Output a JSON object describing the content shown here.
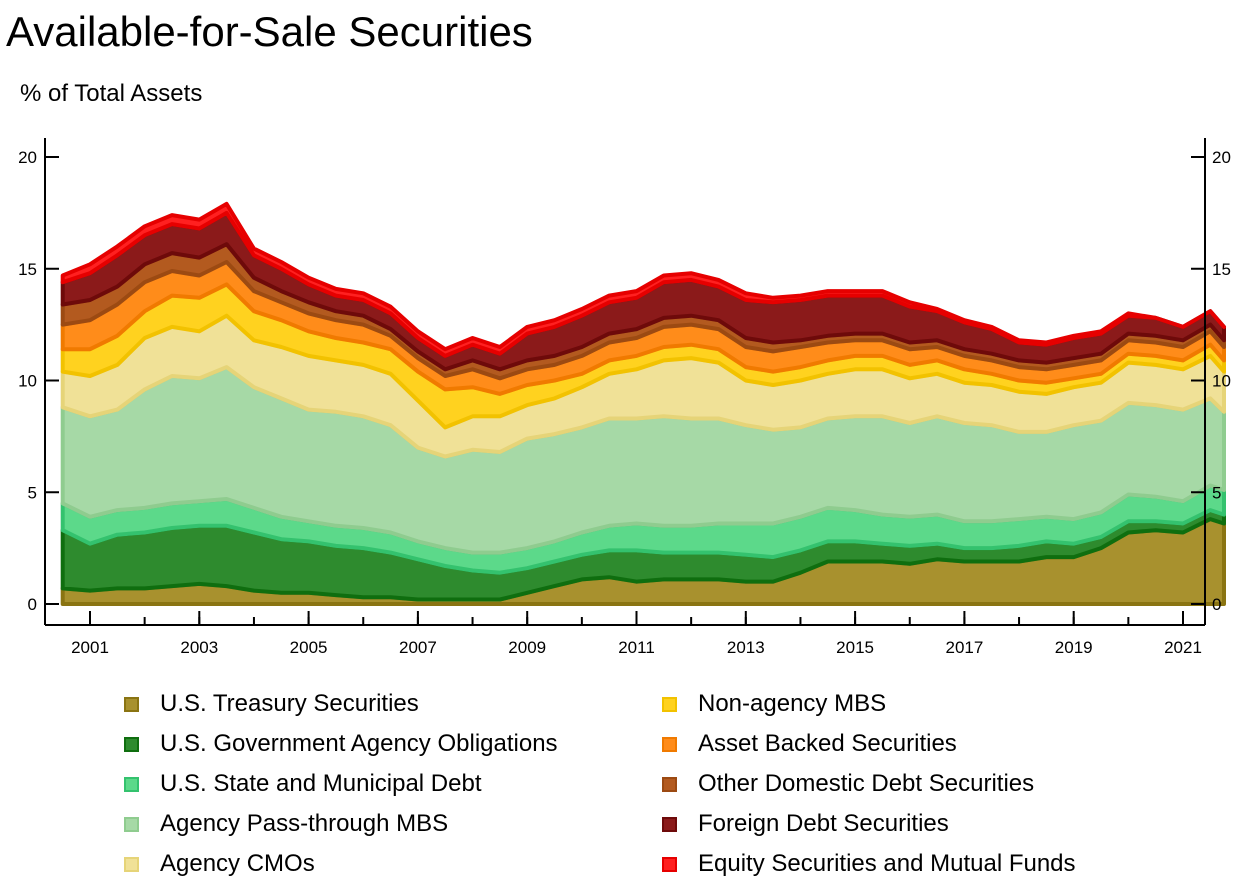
{
  "title": "Available-for-Sale Securities",
  "subtitle": "% of Total Assets",
  "chart_data": {
    "type": "area",
    "stacked": true,
    "title": "Available-for-Sale Securities",
    "ylabel": "% of Total Assets",
    "ylim": [
      0,
      20
    ],
    "yticks": [
      0,
      5,
      10,
      15,
      20
    ],
    "xlim": [
      2000.5,
      2021.75
    ],
    "xticks": [
      "2001",
      "2003",
      "2005",
      "2007",
      "2009",
      "2011",
      "2013",
      "2015",
      "2017",
      "2019",
      "2021"
    ],
    "right_axis": true,
    "grid": false,
    "legend_position": "bottom",
    "x": [
      2000.5,
      2001.0,
      2001.5,
      2002.0,
      2002.5,
      2003.0,
      2003.5,
      2004.0,
      2004.5,
      2005.0,
      2005.5,
      2006.0,
      2006.5,
      2007.0,
      2007.5,
      2008.0,
      2008.5,
      2009.0,
      2009.5,
      2010.0,
      2010.5,
      2011.0,
      2011.5,
      2012.0,
      2012.5,
      2013.0,
      2013.5,
      2014.0,
      2014.5,
      2015.0,
      2015.5,
      2016.0,
      2016.5,
      2017.0,
      2017.5,
      2018.0,
      2018.5,
      2019.0,
      2019.5,
      2020.0,
      2020.5,
      2021.0,
      2021.5,
      2021.75
    ],
    "series": [
      {
        "name": "U.S. Treasury Securities",
        "color": "#a8912e",
        "edge": "#8a7412",
        "values": [
          0.7,
          0.6,
          0.7,
          0.7,
          0.8,
          0.9,
          0.8,
          0.6,
          0.5,
          0.5,
          0.4,
          0.3,
          0.3,
          0.2,
          0.2,
          0.2,
          0.2,
          0.5,
          0.8,
          1.1,
          1.2,
          1.0,
          1.1,
          1.1,
          1.1,
          1.0,
          1.0,
          1.4,
          1.9,
          1.9,
          1.9,
          1.8,
          2.0,
          1.9,
          1.9,
          1.9,
          2.1,
          2.1,
          2.5,
          3.2,
          3.3,
          3.2,
          3.8,
          3.6
        ]
      },
      {
        "name": "U.S. Government Agency Obligations",
        "color": "#2e8b2e",
        "edge": "#0f6e0f",
        "values": [
          2.6,
          2.1,
          2.4,
          2.5,
          2.6,
          2.6,
          2.7,
          2.6,
          2.4,
          2.3,
          2.2,
          2.2,
          2.0,
          1.8,
          1.5,
          1.3,
          1.2,
          1.1,
          1.1,
          1.1,
          1.2,
          1.4,
          1.2,
          1.2,
          1.2,
          1.2,
          1.1,
          1.0,
          0.9,
          0.9,
          0.8,
          0.8,
          0.7,
          0.6,
          0.6,
          0.7,
          0.7,
          0.6,
          0.5,
          0.5,
          0.4,
          0.4,
          0.4,
          0.4
        ]
      },
      {
        "name": "U.S. State and Municipal Debt",
        "color": "#5cd98a",
        "edge": "#34c26e",
        "values": [
          1.2,
          1.2,
          1.1,
          1.1,
          1.1,
          1.1,
          1.2,
          1.1,
          1.0,
          0.9,
          0.9,
          0.9,
          0.9,
          0.8,
          0.8,
          0.8,
          0.9,
          0.9,
          0.9,
          1.0,
          1.1,
          1.2,
          1.2,
          1.2,
          1.3,
          1.4,
          1.5,
          1.5,
          1.5,
          1.4,
          1.3,
          1.3,
          1.3,
          1.2,
          1.2,
          1.2,
          1.1,
          1.1,
          1.1,
          1.2,
          1.1,
          1.0,
          1.1,
          1.1
        ]
      },
      {
        "name": "Agency Pass-through MBS",
        "color": "#a6d9a6",
        "edge": "#8fcc8f",
        "values": [
          4.3,
          4.5,
          4.5,
          5.3,
          5.7,
          5.5,
          5.9,
          5.4,
          5.3,
          5.0,
          5.1,
          5.0,
          4.8,
          4.2,
          4.1,
          4.6,
          4.5,
          4.9,
          4.8,
          4.7,
          4.8,
          4.7,
          4.9,
          4.8,
          4.7,
          4.4,
          4.2,
          4.0,
          4.0,
          4.2,
          4.4,
          4.2,
          4.4,
          4.4,
          4.3,
          3.9,
          3.8,
          4.2,
          4.1,
          4.1,
          4.1,
          4.1,
          3.9,
          3.5
        ]
      },
      {
        "name": "Agency CMOs",
        "color": "#f0e197",
        "edge": "#e6d478",
        "values": [
          1.6,
          1.8,
          2.0,
          2.3,
          2.2,
          2.1,
          2.3,
          2.1,
          2.3,
          2.4,
          2.3,
          2.3,
          2.3,
          2.1,
          1.3,
          1.5,
          1.6,
          1.5,
          1.6,
          1.8,
          2.0,
          2.2,
          2.5,
          2.7,
          2.5,
          2.0,
          2.0,
          2.1,
          2.0,
          2.1,
          2.1,
          2.0,
          1.9,
          1.8,
          1.8,
          1.8,
          1.7,
          1.7,
          1.7,
          1.8,
          1.8,
          1.8,
          1.9,
          1.8
        ]
      },
      {
        "name": "Non-agency MBS",
        "color": "#ffd21f",
        "edge": "#f2c200",
        "values": [
          1.0,
          1.2,
          1.3,
          1.2,
          1.4,
          1.5,
          1.4,
          1.3,
          1.2,
          1.1,
          1.0,
          1.0,
          1.1,
          1.3,
          1.7,
          1.3,
          1.0,
          0.9,
          0.8,
          0.6,
          0.6,
          0.6,
          0.6,
          0.6,
          0.6,
          0.6,
          0.6,
          0.6,
          0.6,
          0.6,
          0.6,
          0.6,
          0.6,
          0.6,
          0.5,
          0.5,
          0.5,
          0.4,
          0.4,
          0.4,
          0.4,
          0.4,
          0.5,
          0.5
        ]
      },
      {
        "name": "Asset Backed Securities",
        "color": "#ff8c1a",
        "edge": "#f07a00",
        "values": [
          1.1,
          1.3,
          1.4,
          1.3,
          1.1,
          1.0,
          1.0,
          0.9,
          0.8,
          0.8,
          0.8,
          0.8,
          0.6,
          0.6,
          0.6,
          0.8,
          0.7,
          0.7,
          0.7,
          0.8,
          0.8,
          0.8,
          0.9,
          0.9,
          0.9,
          0.9,
          0.9,
          0.9,
          0.8,
          0.7,
          0.7,
          0.7,
          0.6,
          0.6,
          0.6,
          0.6,
          0.6,
          0.6,
          0.6,
          0.6,
          0.6,
          0.6,
          0.6,
          0.6
        ]
      },
      {
        "name": "Other Domestic Debt Securities",
        "color": "#b35a1f",
        "edge": "#9c4a12",
        "values": [
          0.9,
          0.9,
          0.8,
          0.8,
          0.8,
          0.8,
          0.8,
          0.6,
          0.5,
          0.5,
          0.4,
          0.4,
          0.3,
          0.3,
          0.3,
          0.4,
          0.4,
          0.4,
          0.4,
          0.4,
          0.4,
          0.4,
          0.4,
          0.4,
          0.4,
          0.4,
          0.4,
          0.3,
          0.3,
          0.3,
          0.3,
          0.3,
          0.3,
          0.3,
          0.3,
          0.3,
          0.3,
          0.3,
          0.3,
          0.3,
          0.3,
          0.3,
          0.3,
          0.3
        ]
      },
      {
        "name": "Foreign Debt Securities",
        "color": "#8b1a1a",
        "edge": "#6e0a0a",
        "values": [
          1.0,
          1.2,
          1.4,
          1.3,
          1.3,
          1.3,
          1.4,
          1.0,
          1.0,
          0.8,
          0.7,
          0.7,
          0.7,
          0.6,
          0.6,
          0.7,
          0.7,
          1.2,
          1.3,
          1.4,
          1.4,
          1.4,
          1.6,
          1.6,
          1.5,
          1.7,
          1.8,
          1.8,
          1.8,
          1.7,
          1.7,
          1.6,
          1.3,
          1.2,
          1.1,
          0.8,
          0.8,
          0.9,
          0.9,
          0.8,
          0.8,
          0.6,
          0.6,
          0.6
        ]
      },
      {
        "name": "Equity Securities and Mutual Funds",
        "color": "#ff2020",
        "edge": "#e60000",
        "values": [
          0.3,
          0.4,
          0.4,
          0.4,
          0.4,
          0.4,
          0.4,
          0.3,
          0.3,
          0.3,
          0.3,
          0.3,
          0.3,
          0.3,
          0.3,
          0.3,
          0.3,
          0.3,
          0.3,
          0.3,
          0.3,
          0.3,
          0.3,
          0.3,
          0.3,
          0.3,
          0.2,
          0.2,
          0.2,
          0.2,
          0.2,
          0.2,
          0.1,
          0.1,
          0.1,
          0.1,
          0.1,
          0.1,
          0.1,
          0.1,
          0.0,
          0.0,
          0.0,
          0.0
        ]
      }
    ]
  }
}
